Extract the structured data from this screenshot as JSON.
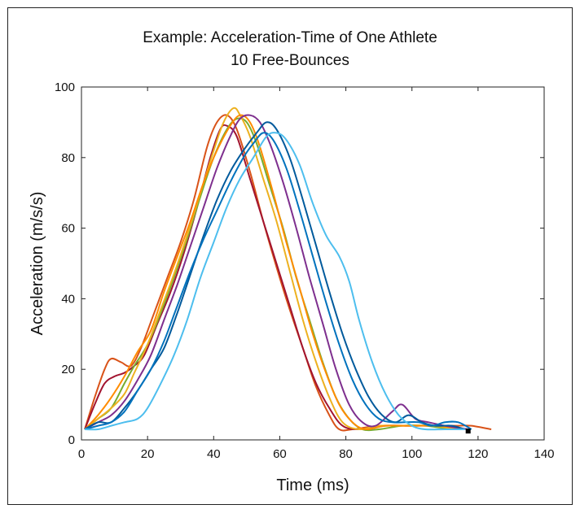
{
  "chart_data": {
    "type": "line",
    "title": "Example: Acceleration-Time of One Athlete",
    "subtitle": "10 Free-Bounces",
    "xlabel": "Time (ms)",
    "ylabel": "Acceleration (m/s/s)",
    "xlim": [
      0,
      140
    ],
    "ylim": [
      0,
      100
    ],
    "xticks": [
      0,
      20,
      40,
      60,
      80,
      100,
      120,
      140
    ],
    "yticks": [
      0,
      20,
      40,
      60,
      80,
      100
    ],
    "grid": false,
    "legend": "none",
    "series": [
      {
        "color": "#D95319",
        "points": [
          [
            1,
            3
          ],
          [
            4,
            12
          ],
          [
            7,
            20
          ],
          [
            9,
            23
          ],
          [
            12,
            22
          ],
          [
            15,
            21
          ],
          [
            18,
            26
          ],
          [
            22,
            36
          ],
          [
            26,
            46
          ],
          [
            30,
            56
          ],
          [
            34,
            68
          ],
          [
            38,
            83
          ],
          [
            41,
            90
          ],
          [
            44,
            92
          ],
          [
            47,
            88
          ],
          [
            51,
            76
          ],
          [
            55,
            62
          ],
          [
            59,
            49
          ],
          [
            63,
            37
          ],
          [
            67,
            26
          ],
          [
            71,
            15
          ],
          [
            75,
            7
          ],
          [
            78,
            3
          ],
          [
            82,
            3
          ],
          [
            90,
            4
          ],
          [
            98,
            4
          ],
          [
            106,
            4
          ],
          [
            114,
            4
          ],
          [
            118,
            4
          ],
          [
            124,
            3
          ]
        ]
      },
      {
        "color": "#A2142F",
        "points": [
          [
            1,
            3
          ],
          [
            4,
            10
          ],
          [
            7,
            16
          ],
          [
            10,
            18
          ],
          [
            13,
            19
          ],
          [
            16,
            21
          ],
          [
            19,
            24
          ],
          [
            23,
            33
          ],
          [
            27,
            42
          ],
          [
            31,
            53
          ],
          [
            35,
            66
          ],
          [
            39,
            80
          ],
          [
            42,
            88
          ],
          [
            44,
            89
          ],
          [
            47,
            86
          ],
          [
            51,
            74
          ],
          [
            55,
            62
          ],
          [
            59,
            50
          ],
          [
            63,
            38
          ],
          [
            67,
            26
          ],
          [
            71,
            16
          ],
          [
            75,
            9
          ],
          [
            79,
            4
          ],
          [
            84,
            3
          ],
          [
            92,
            4
          ],
          [
            100,
            4
          ],
          [
            108,
            4
          ],
          [
            116,
            3
          ]
        ]
      },
      {
        "color": "#77AC30",
        "points": [
          [
            1,
            3
          ],
          [
            5,
            6
          ],
          [
            9,
            9
          ],
          [
            13,
            16
          ],
          [
            16,
            21
          ],
          [
            20,
            27
          ],
          [
            24,
            36
          ],
          [
            28,
            46
          ],
          [
            32,
            57
          ],
          [
            36,
            69
          ],
          [
            40,
            80
          ],
          [
            44,
            88
          ],
          [
            47,
            91
          ],
          [
            50,
            90
          ],
          [
            53,
            84
          ],
          [
            57,
            72
          ],
          [
            61,
            60
          ],
          [
            65,
            46
          ],
          [
            69,
            34
          ],
          [
            73,
            22
          ],
          [
            77,
            12
          ],
          [
            81,
            6
          ],
          [
            85,
            3
          ],
          [
            90,
            3
          ],
          [
            97,
            4
          ],
          [
            104,
            4
          ],
          [
            112,
            3
          ]
        ]
      },
      {
        "color": "#EDB120",
        "points": [
          [
            1,
            3
          ],
          [
            5,
            6
          ],
          [
            9,
            9
          ],
          [
            13,
            13
          ],
          [
            16,
            19
          ],
          [
            20,
            27
          ],
          [
            24,
            37
          ],
          [
            28,
            47
          ],
          [
            32,
            58
          ],
          [
            36,
            70
          ],
          [
            40,
            82
          ],
          [
            43,
            90
          ],
          [
            46,
            94
          ],
          [
            48,
            92
          ],
          [
            51,
            86
          ],
          [
            55,
            74
          ],
          [
            59,
            62
          ],
          [
            63,
            48
          ],
          [
            67,
            34
          ],
          [
            71,
            22
          ],
          [
            75,
            12
          ],
          [
            79,
            5
          ],
          [
            84,
            3
          ],
          [
            90,
            4
          ],
          [
            98,
            4
          ],
          [
            106,
            4
          ],
          [
            114,
            3
          ]
        ]
      },
      {
        "color": "#FF8C00",
        "points": [
          [
            1,
            3
          ],
          [
            5,
            7
          ],
          [
            9,
            12
          ],
          [
            13,
            18
          ],
          [
            17,
            25
          ],
          [
            21,
            31
          ],
          [
            25,
            42
          ],
          [
            29,
            52
          ],
          [
            33,
            62
          ],
          [
            37,
            73
          ],
          [
            41,
            82
          ],
          [
            45,
            89
          ],
          [
            48,
            92
          ],
          [
            51,
            90
          ],
          [
            54,
            83
          ],
          [
            58,
            70
          ],
          [
            62,
            56
          ],
          [
            66,
            43
          ],
          [
            70,
            30
          ],
          [
            74,
            19
          ],
          [
            78,
            10
          ],
          [
            82,
            5
          ],
          [
            86,
            3
          ],
          [
            92,
            4
          ],
          [
            100,
            4
          ],
          [
            108,
            4
          ],
          [
            116,
            3
          ]
        ]
      },
      {
        "color": "#7E2F8E",
        "points": [
          [
            1,
            3
          ],
          [
            5,
            5
          ],
          [
            9,
            7
          ],
          [
            13,
            11
          ],
          [
            17,
            17
          ],
          [
            21,
            24
          ],
          [
            25,
            34
          ],
          [
            29,
            44
          ],
          [
            33,
            55
          ],
          [
            37,
            66
          ],
          [
            41,
            77
          ],
          [
            45,
            86
          ],
          [
            48,
            91
          ],
          [
            51,
            92
          ],
          [
            54,
            90
          ],
          [
            57,
            84
          ],
          [
            61,
            73
          ],
          [
            65,
            60
          ],
          [
            69,
            46
          ],
          [
            73,
            33
          ],
          [
            77,
            20
          ],
          [
            81,
            10
          ],
          [
            85,
            5
          ],
          [
            89,
            4
          ],
          [
            94,
            8
          ],
          [
            97,
            10
          ],
          [
            101,
            6
          ],
          [
            105,
            5
          ],
          [
            110,
            4
          ],
          [
            117,
            3
          ]
        ]
      },
      {
        "color": "#005A9C",
        "points": [
          [
            1,
            3
          ],
          [
            5,
            5
          ],
          [
            9,
            5
          ],
          [
            13,
            9
          ],
          [
            17,
            14
          ],
          [
            21,
            20
          ],
          [
            25,
            26
          ],
          [
            29,
            36
          ],
          [
            33,
            47
          ],
          [
            37,
            58
          ],
          [
            41,
            68
          ],
          [
            45,
            76
          ],
          [
            49,
            82
          ],
          [
            53,
            87
          ],
          [
            56,
            90
          ],
          [
            59,
            88
          ],
          [
            63,
            80
          ],
          [
            67,
            68
          ],
          [
            71,
            55
          ],
          [
            75,
            42
          ],
          [
            79,
            30
          ],
          [
            83,
            20
          ],
          [
            87,
            12
          ],
          [
            91,
            7
          ],
          [
            95,
            5
          ],
          [
            99,
            7
          ],
          [
            103,
            5
          ],
          [
            107,
            4
          ],
          [
            112,
            4
          ],
          [
            116,
            3
          ]
        ]
      },
      {
        "color": "#0072BD",
        "points": [
          [
            1,
            3
          ],
          [
            5,
            4
          ],
          [
            9,
            5
          ],
          [
            13,
            8
          ],
          [
            17,
            14
          ],
          [
            21,
            20
          ],
          [
            25,
            28
          ],
          [
            29,
            38
          ],
          [
            33,
            48
          ],
          [
            37,
            57
          ],
          [
            41,
            65
          ],
          [
            45,
            73
          ],
          [
            49,
            80
          ],
          [
            52,
            84
          ],
          [
            55,
            87
          ],
          [
            58,
            85
          ],
          [
            62,
            77
          ],
          [
            66,
            65
          ],
          [
            70,
            52
          ],
          [
            74,
            39
          ],
          [
            78,
            27
          ],
          [
            82,
            17
          ],
          [
            86,
            10
          ],
          [
            90,
            6
          ],
          [
            94,
            5
          ],
          [
            98,
            5
          ],
          [
            102,
            5
          ],
          [
            106,
            4
          ],
          [
            110,
            5
          ],
          [
            114,
            5
          ],
          [
            118,
            3
          ]
        ]
      },
      {
        "color": "#4DBEEE",
        "points": [
          [
            1,
            3
          ],
          [
            5,
            3
          ],
          [
            9,
            4
          ],
          [
            13,
            5
          ],
          [
            17,
            6
          ],
          [
            20,
            9
          ],
          [
            24,
            16
          ],
          [
            28,
            24
          ],
          [
            32,
            34
          ],
          [
            36,
            46
          ],
          [
            40,
            56
          ],
          [
            44,
            66
          ],
          [
            48,
            74
          ],
          [
            52,
            80
          ],
          [
            56,
            86
          ],
          [
            59,
            87
          ],
          [
            62,
            85
          ],
          [
            66,
            78
          ],
          [
            70,
            67
          ],
          [
            74,
            58
          ],
          [
            78,
            52
          ],
          [
            81,
            45
          ],
          [
            84,
            34
          ],
          [
            88,
            22
          ],
          [
            92,
            13
          ],
          [
            96,
            7
          ],
          [
            100,
            4
          ],
          [
            104,
            3
          ],
          [
            110,
            3
          ],
          [
            116,
            3
          ]
        ]
      }
    ]
  }
}
